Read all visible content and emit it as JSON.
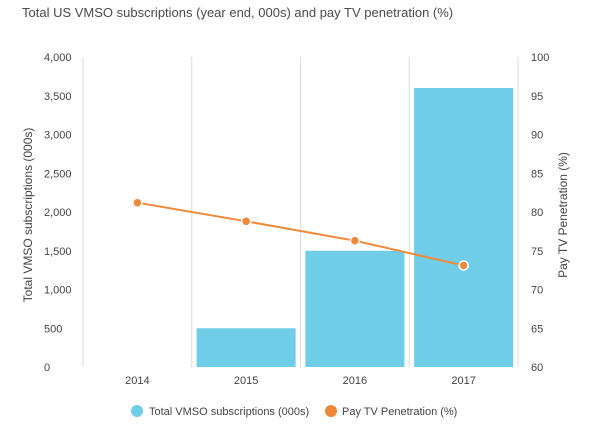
{
  "chart_data": {
    "type": "bar",
    "title": "Total US VMSO subscriptions (year end, 000s) and pay TV penetration (%)",
    "categories": [
      "2014",
      "2015",
      "2016",
      "2017"
    ],
    "series": [
      {
        "name": "Total VMSO subscriptions (000s)",
        "type": "bar",
        "axis": "left",
        "color": "#6fcde8",
        "values": [
          0,
          500,
          1500,
          3600
        ]
      },
      {
        "name": "Pay TV Penetration (%)",
        "type": "line",
        "axis": "right",
        "color": "#f0883a",
        "values": [
          81.2,
          78.8,
          76.3,
          73.1
        ]
      }
    ],
    "ylabel": "Total VMSO subscriptions (000s)",
    "ylabel_right": "Pay TV Penetration (%)",
    "ylim": [
      0,
      4000
    ],
    "ylim_right": [
      60,
      100
    ],
    "yticks": [
      "0",
      "500",
      "1,000",
      "1,500",
      "2,000",
      "2,500",
      "3,000",
      "3,500",
      "4,000"
    ],
    "yticks_right": [
      "60",
      "65",
      "70",
      "75",
      "80",
      "85",
      "90",
      "95",
      "100"
    ],
    "grid": "vertical",
    "legend_position": "bottom-center"
  }
}
